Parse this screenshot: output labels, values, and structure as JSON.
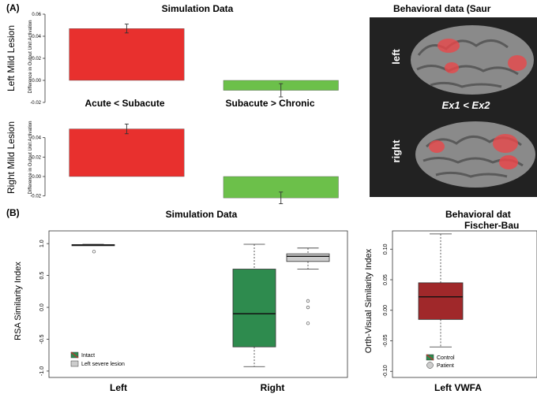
{
  "panel_a": {
    "label": "(A)",
    "sim_title": "Simulation Data",
    "beh_title": "Behavioral data (Saur",
    "comparison_left": "Acute < Subacute",
    "comparison_right": "Subacute > Chronic",
    "brain_contrast": "Ex1 < Ex2",
    "brain_labels": [
      "left",
      "right"
    ]
  },
  "panel_b": {
    "label": "(B)",
    "sim_title": "Simulation Data",
    "beh_title_line1": "Behavioral dat",
    "beh_title_line2": "Fischer-Bau",
    "box_xlabels": [
      "Left",
      "Right"
    ],
    "beh_xlabel": "Left VWFA"
  },
  "colors": {
    "red": "#e8302e",
    "green": "#6cc04a",
    "dark_green": "#2e8b4e",
    "light_gray": "#cccccc",
    "dark_red": "#a0282a",
    "brain_bg": "#222222"
  },
  "chart_data": [
    {
      "type": "bar",
      "row_label": "Left Mild Lesion",
      "ylabel": "Difference in Output Unit Activation",
      "categories": [
        "Acute < Subacute",
        "Subacute > Chronic"
      ],
      "values": [
        0.047,
        -0.009
      ],
      "errors": [
        0.004,
        0.006
      ],
      "ylim": [
        -0.02,
        0.06
      ],
      "yticks": [
        "-0.02",
        "0.00",
        "0.02",
        "0.04",
        "0.06"
      ]
    },
    {
      "type": "bar",
      "row_label": "Right Mild Lesion",
      "ylabel": "Difference in Output Unit Activation",
      "categories": [
        "Acute < Subacute",
        "Subacute > Chronic"
      ],
      "values": [
        0.049,
        -0.022
      ],
      "errors": [
        0.005,
        0.006
      ],
      "ylim": [
        -0.03,
        0.06
      ],
      "yticks": [
        "-0.02",
        "0.00",
        "0.02",
        "0.04"
      ]
    },
    {
      "type": "box",
      "title": "Simulation Data",
      "ylabel": "RSA Similarity Index",
      "categories": [
        "Left",
        "Right"
      ],
      "series": [
        {
          "name": "Intact",
          "boxes": [
            {
              "min": 0.97,
              "q1": 0.975,
              "median": 0.98,
              "q3": 0.985,
              "max": 0.99,
              "outliers": []
            },
            {
              "min": -0.93,
              "q1": -0.62,
              "median": -0.1,
              "q3": 0.6,
              "max": 0.99,
              "outliers": []
            }
          ]
        },
        {
          "name": "Left severe lesion",
          "boxes": null,
          "right_box": {
            "min": 0.6,
            "q1": 0.72,
            "median": 0.8,
            "q3": 0.84,
            "max": 0.93,
            "outliers": [
              0.1,
              0.0,
              -0.25
            ]
          },
          "left_outliers": [
            0.9
          ]
        }
      ],
      "ylim": [
        -1.1,
        1.2
      ],
      "yticks": [
        "-1.0",
        "-0.5",
        "0.0",
        "0.5",
        "1.0"
      ]
    },
    {
      "type": "box",
      "ylabel": "Orth-Visual Similarity Index",
      "categories": [
        "Left VWFA"
      ],
      "series": [
        {
          "name": "Control",
          "box": {
            "min": -0.06,
            "q1": -0.015,
            "median": 0.022,
            "q3": 0.045,
            "max": 0.125
          }
        },
        {
          "name": "Patient"
        }
      ],
      "ylim": [
        -0.11,
        0.13
      ],
      "yticks": [
        "-0.10",
        "-0.05",
        "0.00",
        "0.05",
        "0.10"
      ]
    }
  ]
}
